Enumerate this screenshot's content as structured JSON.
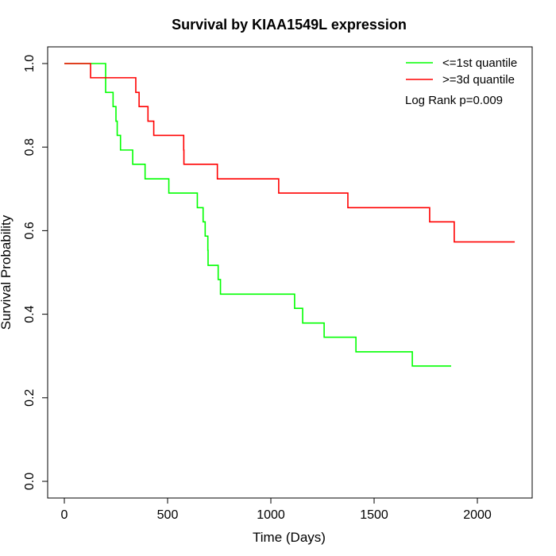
{
  "chart_data": {
    "type": "line",
    "title": "Survival by KIAA1549L expression",
    "xlabel": "Time (Days)",
    "ylabel": "Survival Probability",
    "xlim": [
      0,
      2200
    ],
    "ylim": [
      0,
      1
    ],
    "xticks": [
      0,
      500,
      1000,
      1500,
      2000
    ],
    "yticks": [
      0.0,
      0.2,
      0.4,
      0.6,
      0.8,
      1.0
    ],
    "xtick_labels": [
      "0",
      "500",
      "1000",
      "1500",
      "2000"
    ],
    "ytick_labels": [
      "0.0",
      "0.2",
      "0.4",
      "0.6",
      "0.8",
      "1.0"
    ],
    "legend_position": "top-right",
    "annotation": "Log Rank p=0.009",
    "series": [
      {
        "name": "<=1st quantile",
        "color": "#00ff00",
        "steps": [
          [
            0,
            1.0
          ],
          [
            200,
            0.931
          ],
          [
            236,
            0.897
          ],
          [
            250,
            0.862
          ],
          [
            256,
            0.828
          ],
          [
            272,
            0.793
          ],
          [
            331,
            0.759
          ],
          [
            391,
            0.724
          ],
          [
            506,
            0.69
          ],
          [
            644,
            0.655
          ],
          [
            672,
            0.621
          ],
          [
            682,
            0.587
          ],
          [
            695,
            0.553
          ],
          [
            696,
            0.517
          ],
          [
            745,
            0.483
          ],
          [
            756,
            0.448
          ],
          [
            1115,
            0.414
          ],
          [
            1154,
            0.379
          ],
          [
            1258,
            0.345
          ],
          [
            1412,
            0.31
          ],
          [
            1685,
            0.276
          ]
        ],
        "end": 1873
      },
      {
        "name": ">=3d quantile",
        "color": "#ff0000",
        "steps": [
          [
            0,
            1.0
          ],
          [
            127,
            0.966
          ],
          [
            346,
            0.931
          ],
          [
            362,
            0.897
          ],
          [
            405,
            0.862
          ],
          [
            433,
            0.828
          ],
          [
            578,
            0.793
          ],
          [
            579,
            0.759
          ],
          [
            741,
            0.724
          ],
          [
            1038,
            0.69
          ],
          [
            1373,
            0.655
          ],
          [
            1769,
            0.621
          ],
          [
            1888,
            0.573
          ]
        ],
        "end": 2181
      }
    ]
  }
}
